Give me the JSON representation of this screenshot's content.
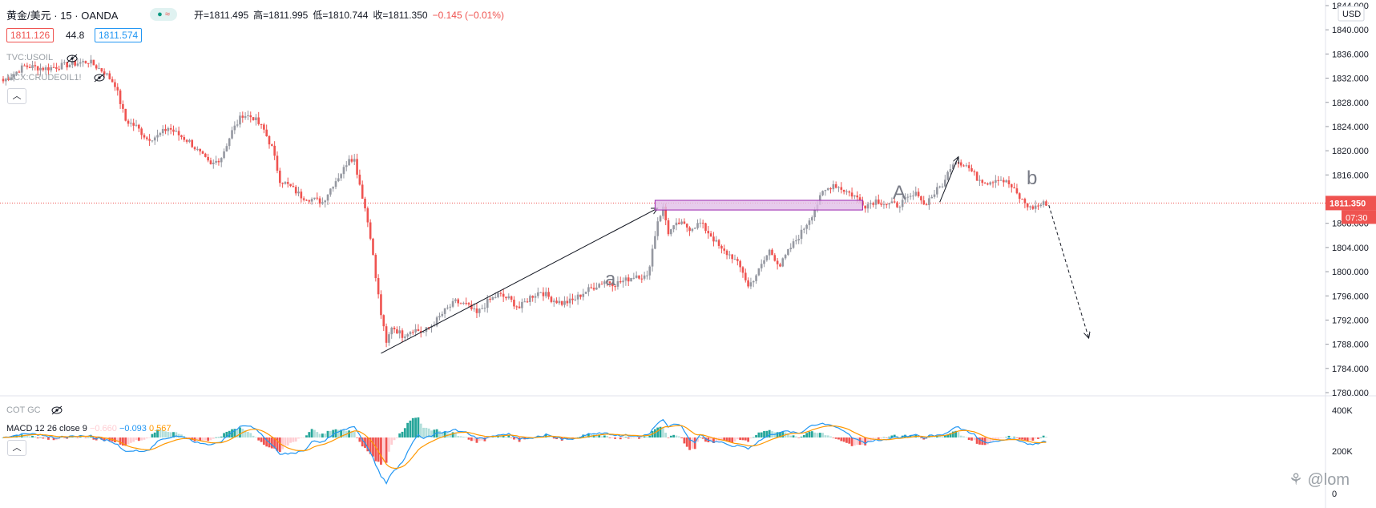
{
  "header": {
    "symbol": "黄金/美元",
    "interval": "15",
    "broker": "OANDA",
    "open_label": "开=1811.495",
    "high_label": "高=1811.995",
    "low_label": "低=1810.744",
    "close_label": "收=1811.350",
    "change_label": "−0.145 (−0.01%)"
  },
  "bid_ask": {
    "bid": "1811.126",
    "spread": "44.8",
    "ask": "1811.574"
  },
  "overlays": {
    "tvc": "TVC:USOIL",
    "mcx": "MCX:CRUDEOIL1!",
    "cot": "COT GC",
    "macd": "MACD 12 26 close 9",
    "macd_hist": "−0.660",
    "macd_line": "−0.093",
    "macd_signal": "0.567"
  },
  "currency": "USD",
  "last_price": "1811.350",
  "countdown": "07:30",
  "annotations": {
    "a": "a",
    "A": "A",
    "b": "b"
  },
  "watermark": "@lom",
  "colors": {
    "up": "#9598a1",
    "down": "#ef5350",
    "macd": "#2196f3",
    "signal": "#ff9800",
    "hist_up_strong": "#26a69a",
    "hist_up_weak": "#b2dfdb",
    "hist_down_strong": "#ef5350",
    "hist_down_weak": "#ffcdd2",
    "box": "#e1bee7"
  },
  "chart_data": {
    "type": "candlestick",
    "price_axis": {
      "min": 1780,
      "max": 1844,
      "ticks": [
        "1844.000",
        "1840.000",
        "1836.000",
        "1832.000",
        "1828.000",
        "1824.000",
        "1820.000",
        "1816.000",
        "1812.000",
        "1808.000",
        "1804.000",
        "1800.000",
        "1796.000",
        "1792.000",
        "1788.000",
        "1784.000",
        "1780.000"
      ]
    },
    "lower_axis": {
      "ticks": [
        "400K",
        "200K",
        "0"
      ]
    },
    "close_path": [
      [
        0,
        1831.5
      ],
      [
        8,
        1834.0
      ],
      [
        16,
        1833.6
      ],
      [
        24,
        1834.2
      ],
      [
        32,
        1834.8
      ],
      [
        38,
        1833.0
      ],
      [
        42,
        1831.0
      ],
      [
        46,
        1825.0
      ],
      [
        50,
        1824.0
      ],
      [
        54,
        1822.0
      ],
      [
        58,
        1822.4
      ],
      [
        62,
        1823.8
      ],
      [
        66,
        1822.6
      ],
      [
        70,
        1821.5
      ],
      [
        74,
        1819.5
      ],
      [
        78,
        1817.5
      ],
      [
        82,
        1819.0
      ],
      [
        86,
        1823.2
      ],
      [
        90,
        1826.0
      ],
      [
        94,
        1825.5
      ],
      [
        98,
        1823.4
      ],
      [
        101,
        1820.5
      ],
      [
        104,
        1815.2
      ],
      [
        108,
        1814.0
      ],
      [
        112,
        1812.5
      ],
      [
        116,
        1812.0
      ],
      [
        120,
        1811.5
      ],
      [
        124,
        1814.5
      ],
      [
        128,
        1817.0
      ],
      [
        130,
        1819.0
      ],
      [
        132,
        1818.5
      ],
      [
        134,
        1814.5
      ],
      [
        136,
        1810.5
      ],
      [
        138,
        1806.0
      ],
      [
        140,
        1799.0
      ],
      [
        142,
        1793.0
      ],
      [
        144,
        1788.0
      ],
      [
        146,
        1791.0
      ],
      [
        150,
        1789.5
      ],
      [
        154,
        1790.5
      ],
      [
        158,
        1790.0
      ],
      [
        162,
        1791.5
      ],
      [
        166,
        1793.5
      ],
      [
        170,
        1795.0
      ],
      [
        174,
        1794.5
      ],
      [
        178,
        1793.0
      ],
      [
        182,
        1795.0
      ],
      [
        186,
        1796.2
      ],
      [
        190,
        1795.5
      ],
      [
        194,
        1794.0
      ],
      [
        198,
        1795.8
      ],
      [
        202,
        1796.8
      ],
      [
        206,
        1795.5
      ],
      [
        210,
        1794.8
      ],
      [
        214,
        1795.2
      ],
      [
        218,
        1796.5
      ],
      [
        222,
        1797.5
      ],
      [
        226,
        1798.5
      ],
      [
        230,
        1798.0
      ],
      [
        234,
        1798.6
      ],
      [
        238,
        1799.5
      ],
      [
        242,
        1799.0
      ],
      [
        246,
        1808.5
      ],
      [
        248,
        1810.5
      ],
      [
        250,
        1806.5
      ],
      [
        254,
        1808.0
      ],
      [
        258,
        1807.2
      ],
      [
        262,
        1808.0
      ],
      [
        266,
        1806.0
      ],
      [
        270,
        1803.5
      ],
      [
        274,
        1802.5
      ],
      [
        278,
        1800.0
      ],
      [
        280,
        1797.5
      ],
      [
        284,
        1800.2
      ],
      [
        288,
        1803.5
      ],
      [
        292,
        1801.0
      ],
      [
        296,
        1804.0
      ],
      [
        300,
        1806.5
      ],
      [
        304,
        1809.5
      ],
      [
        308,
        1813.0
      ],
      [
        312,
        1814.5
      ],
      [
        316,
        1813.5
      ],
      [
        320,
        1812.5
      ],
      [
        324,
        1811.0
      ],
      [
        328,
        1811.8
      ],
      [
        332,
        1811.2
      ],
      [
        336,
        1811.0
      ],
      [
        340,
        1812.0
      ],
      [
        344,
        1813.0
      ],
      [
        346,
        1811.0
      ],
      [
        350,
        1813.0
      ],
      [
        354,
        1815.0
      ],
      [
        356,
        1817.5
      ],
      [
        358,
        1818.5
      ],
      [
        362,
        1817.6
      ],
      [
        366,
        1815.5
      ],
      [
        370,
        1814.8
      ],
      [
        374,
        1815.5
      ],
      [
        378,
        1814.5
      ],
      [
        382,
        1812.2
      ],
      [
        386,
        1810.5
      ],
      [
        390,
        1811.1
      ],
      [
        392,
        1811.35
      ]
    ],
    "annotations": [
      {
        "type": "arrow",
        "label": "a",
        "from": [
          142,
          1786.5
        ],
        "to": [
          246,
          1810.5
        ]
      },
      {
        "type": "box",
        "label": "A",
        "price_range": [
          1810.2,
          1811.8
        ]
      },
      {
        "type": "arrow",
        "label": "b",
        "from": [
          352,
          1811.5
        ],
        "to": [
          359,
          1819.0
        ]
      },
      {
        "type": "dashed-arrow",
        "from": [
          393,
          1811.0
        ],
        "to": [
          408,
          1789.0
        ]
      }
    ],
    "last_price_line": 1811.35
  }
}
